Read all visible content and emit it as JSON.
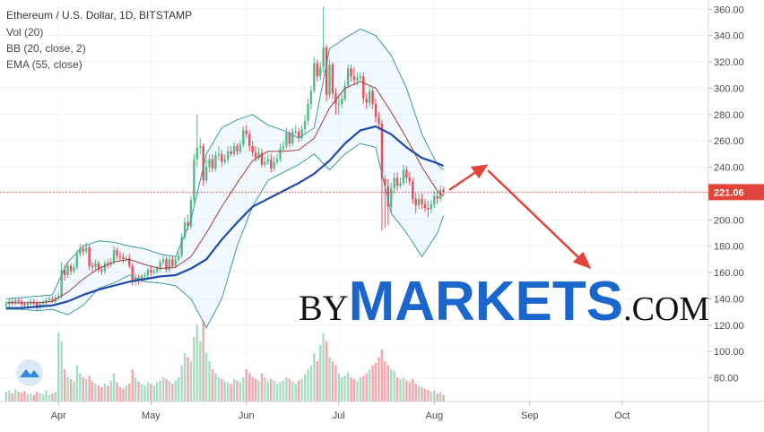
{
  "chart_data": {
    "type": "candlestick",
    "title": "Ethereum / U.S. Dollar, 1D, BITSTAMP",
    "xlim": [
      -2,
      228
    ],
    "xticks": [
      {
        "value": 17,
        "label": "Apr"
      },
      {
        "value": 47,
        "label": "May"
      },
      {
        "value": 78,
        "label": "Jun"
      },
      {
        "value": 108,
        "label": "Jul"
      },
      {
        "value": 139,
        "label": "Aug"
      },
      {
        "value": 170,
        "label": "Sep"
      },
      {
        "value": 200,
        "label": "Oct"
      }
    ],
    "ylim": [
      62,
      367
    ],
    "yticks": [
      {
        "value": 80,
        "label": "80.00"
      },
      {
        "value": 100,
        "label": "100.00"
      },
      {
        "value": 120,
        "label": "120.00"
      },
      {
        "value": 140,
        "label": "140.00"
      },
      {
        "value": 160,
        "label": "160.00"
      },
      {
        "value": 180,
        "label": "180.00"
      },
      {
        "value": 200,
        "label": "200.00"
      },
      {
        "value": 220,
        "label": "220.00"
      },
      {
        "value": 240,
        "label": "240.00"
      },
      {
        "value": 260,
        "label": "260.00"
      },
      {
        "value": 280,
        "label": "280.00"
      },
      {
        "value": 300,
        "label": "300.00"
      },
      {
        "value": 320,
        "label": "320.00"
      },
      {
        "value": 340,
        "label": "340.00"
      },
      {
        "value": 360,
        "label": "360.00"
      }
    ],
    "up_color": "#53b987",
    "down_color": "#eb4d5c",
    "ohlc": {
      "open": [
        135,
        136,
        138,
        137,
        139,
        138,
        136,
        135,
        137,
        138,
        137,
        134,
        136,
        137,
        139,
        140,
        138,
        141,
        142,
        162,
        158,
        165,
        161,
        164,
        174,
        178,
        176,
        179,
        165,
        164,
        167,
        162,
        161,
        167,
        166,
        168,
        177,
        173,
        172,
        170,
        171,
        165,
        153,
        156,
        154,
        157,
        158,
        162,
        160,
        161,
        163,
        168,
        170,
        162,
        170,
        165,
        170,
        173,
        187,
        198,
        195,
        215,
        246,
        255,
        256,
        230,
        240,
        246,
        239,
        249,
        250,
        244,
        246,
        252,
        250,
        256,
        252,
        257,
        268,
        265,
        256,
        251,
        247,
        251,
        242,
        244,
        246,
        239,
        244,
        246,
        254,
        256,
        266,
        258,
        267,
        267,
        262,
        269,
        275,
        288,
        298,
        319,
        309,
        316,
        331,
        295,
        318,
        296,
        288,
        288,
        292,
        302,
        315,
        309,
        306,
        308,
        309,
        292,
        289,
        298,
        288,
        278,
        273,
        231,
        226,
        210,
        224,
        232,
        226,
        228,
        238,
        232,
        229,
        216,
        211,
        216,
        212,
        209,
        208,
        212,
        218,
        216,
        223
      ],
      "high": [
        138,
        140,
        140,
        141,
        141,
        140,
        138,
        139,
        140,
        140,
        139,
        138,
        139,
        141,
        142,
        142,
        143,
        145,
        168,
        166,
        168,
        167,
        167,
        177,
        182,
        181,
        183,
        181,
        168,
        170,
        169,
        165,
        169,
        170,
        171,
        180,
        179,
        176,
        175,
        173,
        174,
        167,
        159,
        158,
        159,
        160,
        164,
        165,
        163,
        165,
        170,
        173,
        172,
        172,
        172,
        172,
        176,
        190,
        202,
        204,
        218,
        250,
        280,
        262,
        258,
        246,
        250,
        250,
        252,
        256,
        253,
        250,
        256,
        256,
        259,
        258,
        260,
        271,
        272,
        268,
        260,
        256,
        255,
        254,
        248,
        250,
        250,
        248,
        250,
        258,
        260,
        270,
        268,
        270,
        272,
        270,
        272,
        280,
        292,
        302,
        324,
        322,
        320,
        362,
        333,
        322,
        320,
        300,
        294,
        296,
        306,
        318,
        318,
        316,
        312,
        312,
        312,
        296,
        302,
        300,
        292,
        282,
        276,
        234,
        231,
        228,
        236,
        236,
        232,
        242,
        241,
        236,
        232,
        220,
        220,
        220,
        216,
        214,
        215,
        222,
        221,
        226,
        225
      ],
      "low": [
        132,
        134,
        135,
        135,
        136,
        134,
        133,
        133,
        135,
        135,
        131,
        132,
        134,
        135,
        137,
        137,
        136,
        139,
        140,
        154,
        156,
        158,
        159,
        162,
        172,
        173,
        174,
        162,
        160,
        162,
        160,
        158,
        159,
        163,
        164,
        166,
        170,
        169,
        167,
        168,
        163,
        150,
        150,
        151,
        152,
        154,
        156,
        157,
        158,
        159,
        161,
        166,
        160,
        160,
        163,
        163,
        168,
        171,
        185,
        192,
        193,
        212,
        240,
        250,
        226,
        228,
        236,
        236,
        237,
        245,
        240,
        242,
        243,
        248,
        248,
        249,
        250,
        255,
        262,
        252,
        248,
        244,
        245,
        240,
        240,
        242,
        236,
        237,
        242,
        244,
        252,
        254,
        255,
        256,
        264,
        259,
        260,
        266,
        272,
        284,
        296,
        305,
        306,
        312,
        290,
        292,
        292,
        280,
        280,
        285,
        290,
        300,
        305,
        302,
        302,
        305,
        288,
        284,
        286,
        284,
        274,
        268,
        192,
        194,
        196,
        205,
        220,
        222,
        224,
        226,
        228,
        226,
        212,
        205,
        208,
        208,
        206,
        202,
        205,
        209,
        212,
        214,
        219
      ],
      "close": [
        136,
        138,
        137,
        139,
        138,
        136,
        135,
        137,
        138,
        137,
        134,
        136,
        137,
        139,
        140,
        138,
        141,
        142,
        162,
        158,
        165,
        161,
        164,
        174,
        178,
        176,
        179,
        165,
        164,
        167,
        162,
        161,
        167,
        166,
        168,
        177,
        173,
        172,
        170,
        171,
        165,
        153,
        156,
        154,
        157,
        158,
        162,
        160,
        161,
        163,
        168,
        170,
        162,
        170,
        165,
        170,
        173,
        187,
        198,
        195,
        215,
        246,
        255,
        256,
        230,
        240,
        246,
        239,
        249,
        250,
        244,
        246,
        252,
        250,
        256,
        252,
        257,
        268,
        265,
        256,
        251,
        247,
        251,
        242,
        244,
        246,
        239,
        244,
        246,
        254,
        256,
        266,
        258,
        267,
        267,
        262,
        269,
        275,
        288,
        298,
        319,
        309,
        316,
        331,
        295,
        318,
        296,
        288,
        288,
        292,
        302,
        315,
        309,
        306,
        308,
        309,
        292,
        289,
        298,
        288,
        278,
        273,
        231,
        226,
        210,
        224,
        232,
        226,
        228,
        238,
        232,
        229,
        216,
        211,
        216,
        212,
        209,
        208,
        212,
        218,
        216,
        223,
        221.06
      ]
    },
    "volume": {
      "name": "Vol (20)",
      "values": [
        12,
        14,
        10,
        15,
        12,
        11,
        13,
        9,
        10,
        8,
        12,
        10,
        9,
        14,
        8,
        10,
        12,
        85,
        75,
        40,
        30,
        28,
        25,
        45,
        35,
        30,
        28,
        32,
        25,
        22,
        20,
        18,
        22,
        20,
        26,
        35,
        24,
        18,
        16,
        20,
        22,
        40,
        30,
        25,
        22,
        20,
        24,
        22,
        20,
        24,
        26,
        30,
        28,
        25,
        22,
        26,
        30,
        45,
        60,
        55,
        50,
        80,
        95,
        75,
        100,
        60,
        50,
        40,
        35,
        30,
        28,
        25,
        24,
        22,
        28,
        26,
        24,
        30,
        40,
        35,
        30,
        28,
        26,
        35,
        30,
        25,
        28,
        26,
        22,
        24,
        26,
        30,
        28,
        25,
        22,
        26,
        28,
        34,
        40,
        45,
        60,
        50,
        70,
        85,
        75,
        55,
        50,
        45,
        35,
        30,
        32,
        36,
        30,
        28,
        25,
        30,
        32,
        35,
        40,
        45,
        48,
        55,
        65,
        50,
        45,
        40,
        38,
        30,
        28,
        30,
        26,
        24,
        28,
        22,
        20,
        18,
        16,
        14,
        12,
        14,
        10,
        12,
        8
      ]
    },
    "bollinger": {
      "name": "BB (20, close, 2)",
      "x": [
        0,
        5,
        10,
        15,
        20,
        25,
        30,
        35,
        40,
        45,
        50,
        55,
        60,
        65,
        70,
        75,
        80,
        85,
        90,
        95,
        100,
        105,
        110,
        115,
        120,
        125,
        130,
        135,
        140,
        142
      ],
      "upper": [
        140,
        141,
        142,
        143,
        168,
        180,
        184,
        183,
        180,
        178,
        174,
        172,
        200,
        250,
        270,
        276,
        280,
        272,
        268,
        262,
        270,
        330,
        338,
        345,
        340,
        325,
        300,
        265,
        242,
        238
      ],
      "basis": [
        137,
        137,
        137,
        138,
        145,
        155,
        163,
        168,
        170,
        166,
        163,
        164,
        172,
        190,
        210,
        228,
        245,
        252,
        252,
        253,
        262,
        285,
        300,
        305,
        300,
        282,
        262,
        240,
        222,
        218
      ],
      "lower": [
        132,
        132,
        131,
        132,
        128,
        135,
        148,
        152,
        158,
        153,
        152,
        150,
        140,
        118,
        140,
        180,
        210,
        230,
        236,
        242,
        250,
        238,
        250,
        258,
        255,
        205,
        190,
        172,
        190,
        203
      ]
    },
    "ema": {
      "name": "EMA (55, close)",
      "x": [
        0,
        5,
        10,
        15,
        20,
        25,
        30,
        35,
        40,
        45,
        50,
        55,
        60,
        65,
        70,
        75,
        80,
        85,
        90,
        95,
        100,
        105,
        110,
        115,
        120,
        125,
        130,
        135,
        140,
        142
      ],
      "values": [
        133,
        133,
        134,
        135,
        138,
        143,
        147,
        150,
        153,
        155,
        157,
        158,
        163,
        170,
        185,
        198,
        210,
        216,
        222,
        228,
        235,
        245,
        258,
        268,
        271,
        265,
        255,
        247,
        243,
        241
      ]
    },
    "watermark": [
      "BY",
      "MARKETS",
      ".COM"
    ]
  }
}
